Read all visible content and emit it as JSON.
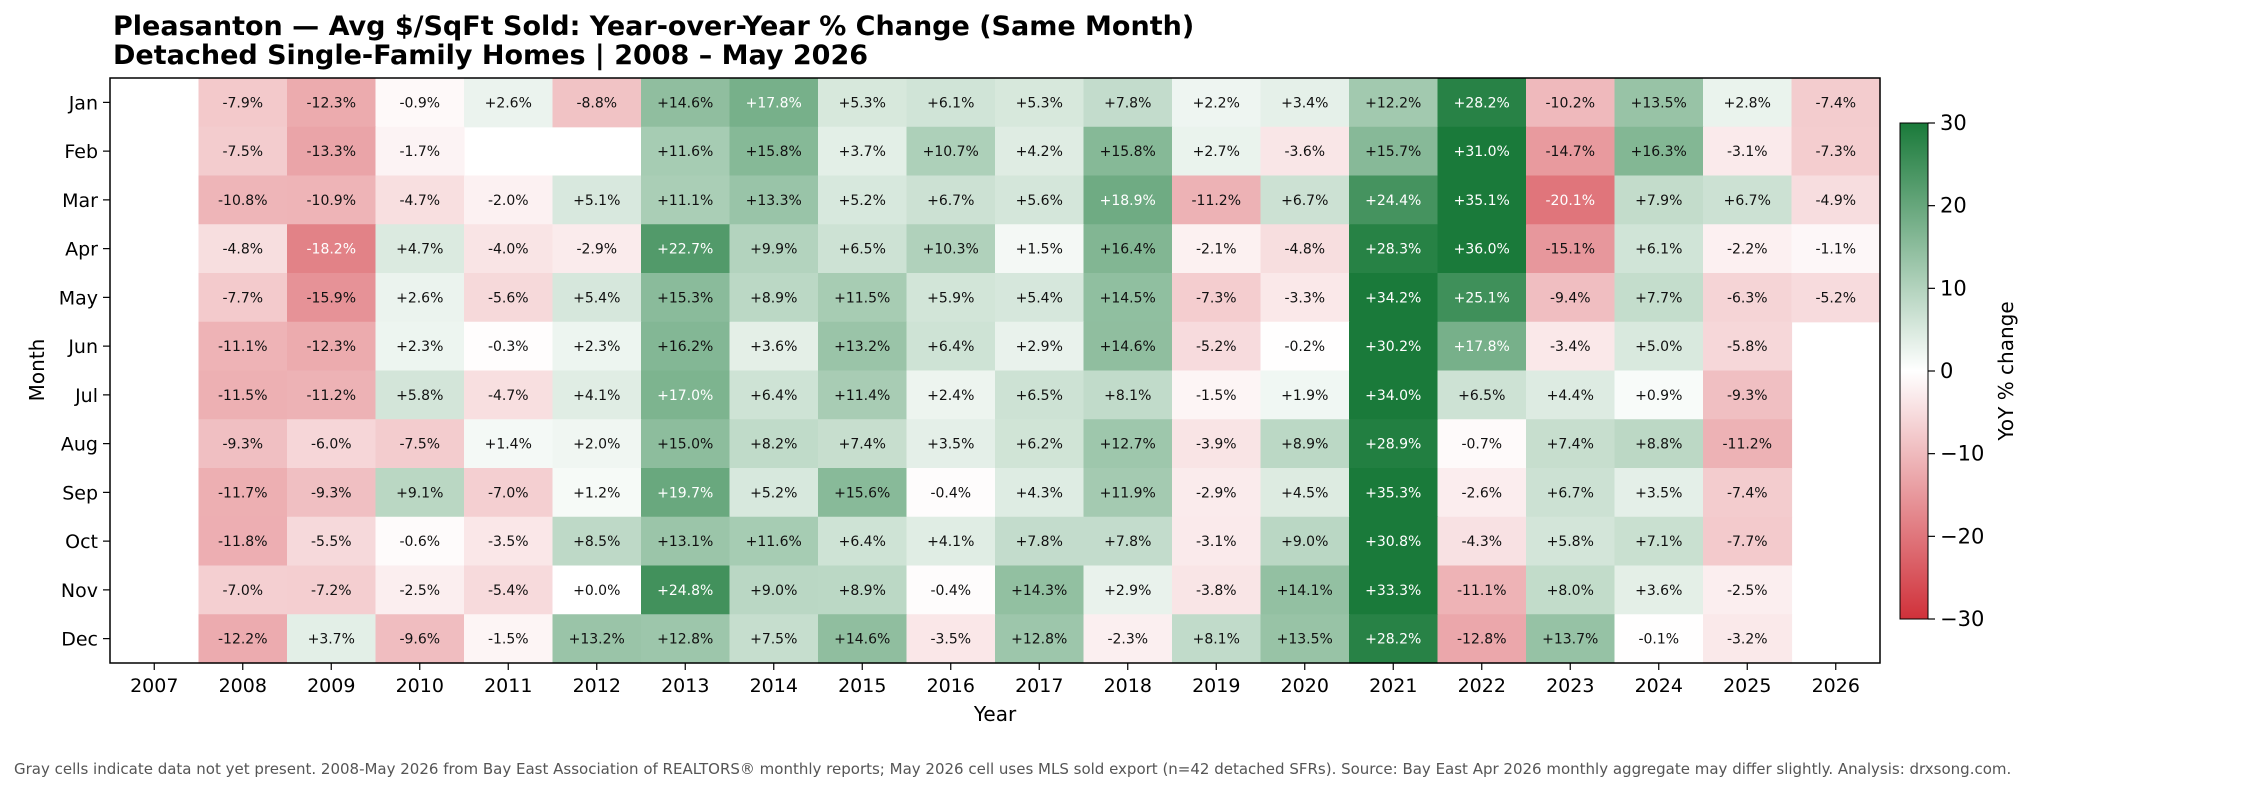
{
  "chart_data": {
    "type": "heatmap",
    "title": "Pleasanton — Avg $/SqFt Sold: Year-over-Year % Change (Same Month)",
    "subtitle": "Detached Single-Family Homes  |  2008 – May 2026",
    "xlabel": "Year",
    "ylabel": "Month",
    "colorbar_label": "YoY % change",
    "colorbar_range": [
      -30,
      30
    ],
    "colorbar_ticks": [
      "30",
      "20",
      "10",
      "0",
      "−10",
      "−20",
      "−30"
    ],
    "colors": {
      "negative": "#d0313a",
      "neutral": "#ffffff",
      "positive": "#1a7a3a"
    },
    "years": [
      "2007",
      "2008",
      "2009",
      "2010",
      "2011",
      "2012",
      "2013",
      "2014",
      "2015",
      "2016",
      "2017",
      "2018",
      "2019",
      "2020",
      "2021",
      "2022",
      "2023",
      "2024",
      "2025",
      "2026"
    ],
    "months": [
      "Jan",
      "Feb",
      "Mar",
      "Apr",
      "May",
      "Jun",
      "Jul",
      "Aug",
      "Sep",
      "Oct",
      "Nov",
      "Dec"
    ],
    "values": [
      [
        null,
        -7.9,
        -12.3,
        -0.9,
        2.6,
        -8.8,
        14.6,
        17.8,
        5.3,
        6.1,
        5.3,
        7.8,
        2.2,
        3.4,
        12.2,
        28.2,
        -10.2,
        13.5,
        2.8,
        -7.4
      ],
      [
        null,
        -7.5,
        -13.3,
        -1.7,
        null,
        null,
        11.6,
        15.8,
        3.7,
        10.7,
        4.2,
        15.8,
        2.7,
        -3.6,
        15.7,
        31.0,
        -14.7,
        16.3,
        -3.1,
        -7.3
      ],
      [
        null,
        -10.8,
        -10.9,
        -4.7,
        -2.0,
        5.1,
        11.1,
        13.3,
        5.2,
        6.7,
        5.6,
        18.9,
        -11.2,
        6.7,
        24.4,
        35.1,
        -20.1,
        7.9,
        6.7,
        -4.9
      ],
      [
        null,
        -4.8,
        -18.2,
        4.7,
        -4.0,
        -2.9,
        22.7,
        9.9,
        6.5,
        10.3,
        1.5,
        16.4,
        -2.1,
        -4.8,
        28.3,
        36.0,
        -15.1,
        6.1,
        -2.2,
        -1.1
      ],
      [
        null,
        -7.7,
        -15.9,
        2.6,
        -5.6,
        5.4,
        15.3,
        8.9,
        11.5,
        5.9,
        5.4,
        14.5,
        -7.3,
        -3.3,
        34.2,
        25.1,
        -9.4,
        7.7,
        -6.3,
        -5.2
      ],
      [
        null,
        -11.1,
        -12.3,
        2.3,
        -0.3,
        2.3,
        16.2,
        3.6,
        13.2,
        6.4,
        2.9,
        14.6,
        -5.2,
        -0.2,
        30.2,
        17.8,
        -3.4,
        5.0,
        -5.8,
        null
      ],
      [
        null,
        -11.5,
        -11.2,
        5.8,
        -4.7,
        4.1,
        17.0,
        6.4,
        11.4,
        2.4,
        6.5,
        8.1,
        -1.5,
        1.9,
        34.0,
        6.5,
        4.4,
        0.9,
        -9.3,
        null
      ],
      [
        null,
        -9.3,
        -6.0,
        -7.5,
        1.4,
        2.0,
        15.0,
        8.2,
        7.4,
        3.5,
        6.2,
        12.7,
        -3.9,
        8.9,
        28.9,
        -0.7,
        7.4,
        8.8,
        -11.2,
        null
      ],
      [
        null,
        -11.7,
        -9.3,
        9.1,
        -7.0,
        1.2,
        19.7,
        5.2,
        15.6,
        -0.4,
        4.3,
        11.9,
        -2.9,
        4.5,
        35.3,
        -2.6,
        6.7,
        3.5,
        -7.4,
        null
      ],
      [
        null,
        -11.8,
        -5.5,
        -0.6,
        -3.5,
        8.5,
        13.1,
        11.6,
        6.4,
        4.1,
        7.8,
        7.8,
        -3.1,
        9.0,
        30.8,
        -4.3,
        5.8,
        7.1,
        -7.7,
        null
      ],
      [
        null,
        -7.0,
        -7.2,
        -2.5,
        -5.4,
        0.0,
        24.8,
        9.0,
        8.9,
        -0.4,
        14.3,
        2.9,
        -3.8,
        14.1,
        33.3,
        -11.1,
        8.0,
        3.6,
        -2.5,
        null
      ],
      [
        null,
        -12.2,
        3.7,
        -9.6,
        -1.5,
        13.2,
        12.8,
        7.5,
        14.6,
        -3.5,
        12.8,
        -2.3,
        8.1,
        13.5,
        28.2,
        -12.8,
        13.7,
        -0.1,
        -3.2,
        null
      ]
    ]
  },
  "footnote": "Gray cells indicate data not yet present. 2008-May 2026 from Bay East Association of REALTORS® monthly reports; May 2026 cell uses MLS sold export (n=42 detached SFRs). Source: Bay East Apr 2026 monthly aggregate may differ slightly. Analysis: drxsong.com."
}
